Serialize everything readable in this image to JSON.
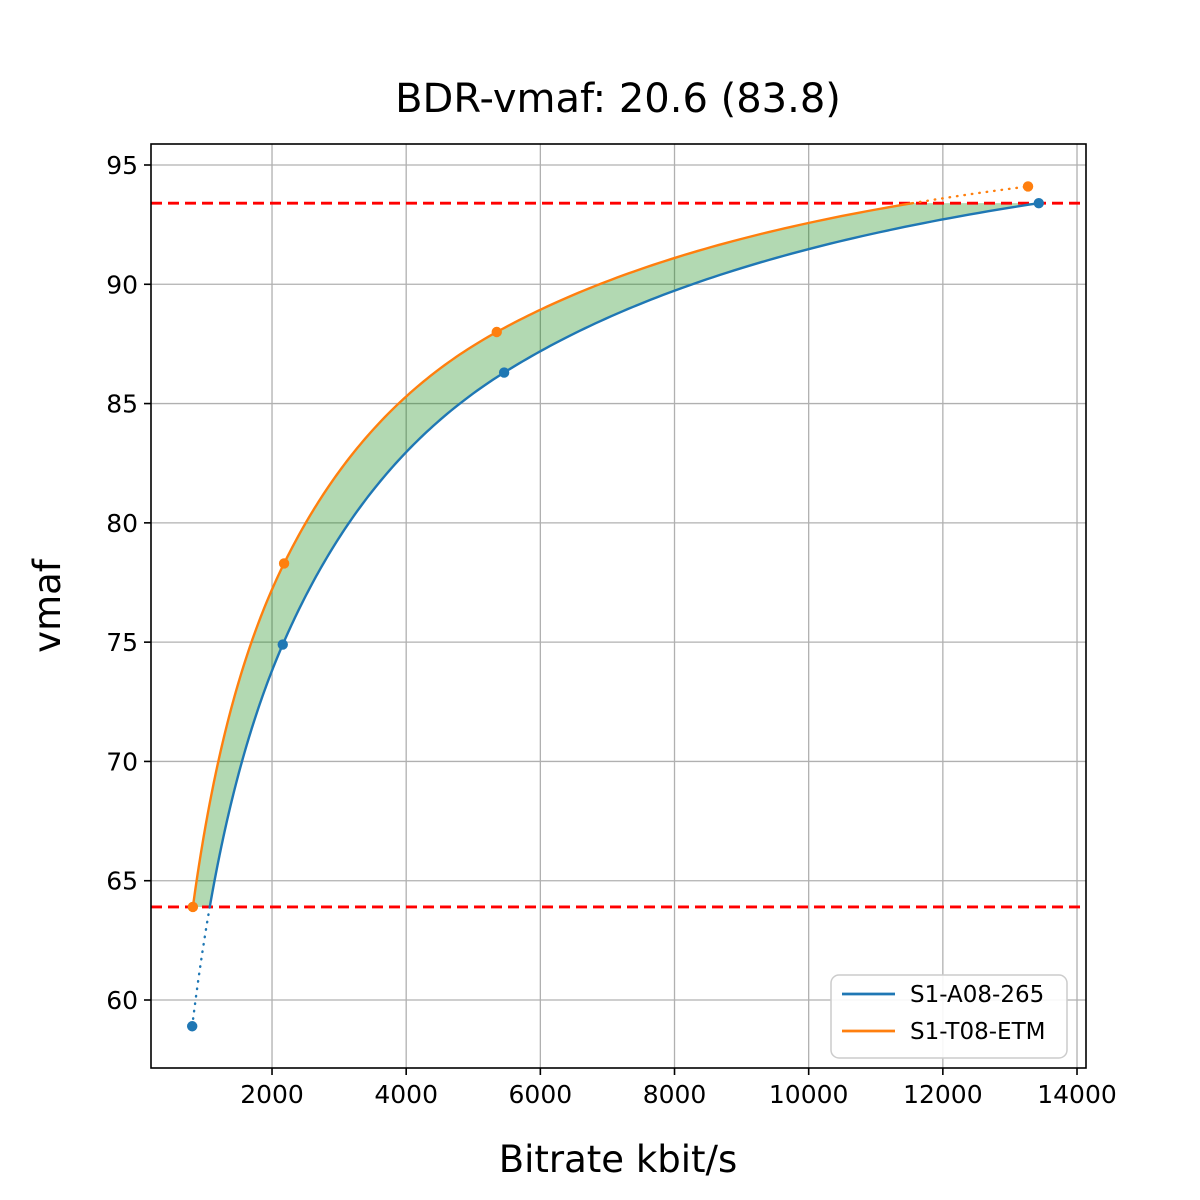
{
  "chart_data": {
    "type": "line",
    "title": "BDR-vmaf: 20.6 (83.8)",
    "xlabel": "Bitrate kbit/s",
    "ylabel": "vmaf",
    "xlim": [
      196,
      14134
    ],
    "ylim": [
      57.15,
      95.88
    ],
    "xticks": [
      2000,
      4000,
      6000,
      8000,
      10000,
      12000,
      14000
    ],
    "yticks": [
      60,
      65,
      70,
      75,
      80,
      85,
      90,
      95
    ],
    "grid": true,
    "grid_color": "#b0b0b0",
    "interpolation": "pchip-log10",
    "series": [
      {
        "name": "S1-A08-265",
        "color": "#1f77b4",
        "x": [
          810,
          2160,
          5460,
          13430
        ],
        "y": [
          58.9,
          74.9,
          86.3,
          93.4
        ]
      },
      {
        "name": "S1-T08-ETM",
        "color": "#ff7f0e",
        "x": [
          820,
          2180,
          5350,
          13270
        ],
        "y": [
          63.9,
          78.3,
          88.0,
          94.1
        ]
      }
    ],
    "overlap_lines": {
      "low": 63.9,
      "high": 93.4,
      "color": "#ff0000",
      "style": "dashed"
    },
    "fill_between": {
      "color": "#008000",
      "opacity": 0.3
    },
    "legend": {
      "position": "lower right",
      "entries": [
        "S1-A08-265",
        "S1-T08-ETM"
      ]
    },
    "bd_rate_value": "20.6",
    "bd_mean_quality": "83.8"
  }
}
